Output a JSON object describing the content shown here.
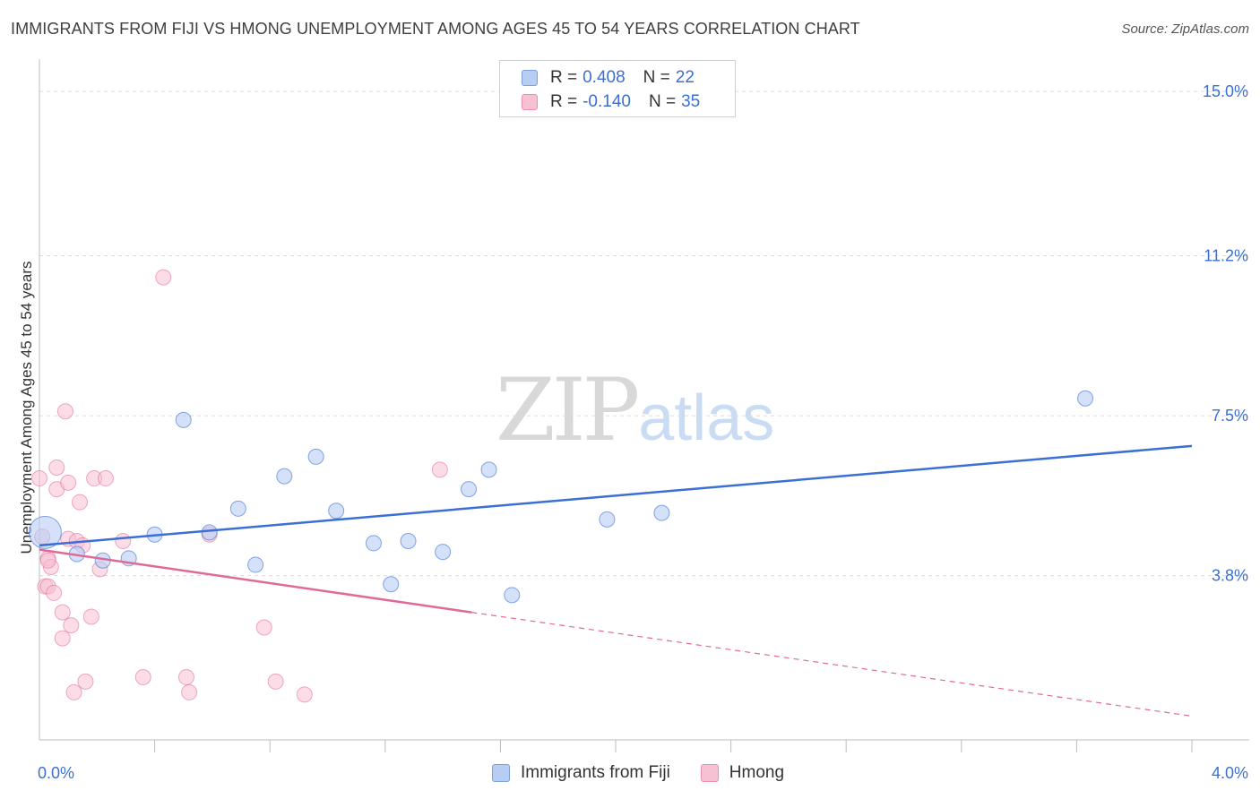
{
  "title": "IMMIGRANTS FROM FIJI VS HMONG UNEMPLOYMENT AMONG AGES 45 TO 54 YEARS CORRELATION CHART",
  "source": "Source: ZipAtlas.com",
  "watermark": {
    "zip": "ZIP",
    "atlas": "atlas"
  },
  "legend_top": [
    {
      "r_label": "R =",
      "r_value": "0.408",
      "n_label": "N =",
      "n_value": "22"
    },
    {
      "r_label": "R =",
      "r_value": "-0.140",
      "n_label": "N =",
      "n_value": "35"
    }
  ],
  "legend_bottom": [
    {
      "label": "Immigrants from Fiji"
    },
    {
      "label": "Hmong"
    }
  ],
  "chart_data": {
    "type": "scatter",
    "xlabel": "",
    "ylabel": "Unemployment Among Ages 45 to 54 years",
    "xlim": [
      0,
      4.0
    ],
    "ylim": [
      0,
      15.5
    ],
    "x_tick_labels": [
      "0.0%",
      "4.0%"
    ],
    "y_ticks": [
      3.8,
      7.5,
      11.2,
      15.0
    ],
    "y_tick_labels": [
      "3.8%",
      "7.5%",
      "11.2%",
      "15.0%"
    ],
    "grid": "horizontal dashed",
    "colors": {
      "fiji": "#3b6fd4",
      "fiji_fill": "#b7cdf4",
      "hmong": "#e06a97",
      "hmong_fill": "#f7c0d3",
      "tick_label": "#3b6fd4"
    },
    "series": [
      {
        "name": "Immigrants from Fiji",
        "points": [
          {
            "x": 0.02,
            "y": 4.8,
            "big": true
          },
          {
            "x": 0.13,
            "y": 4.3
          },
          {
            "x": 0.22,
            "y": 4.15
          },
          {
            "x": 0.31,
            "y": 4.2
          },
          {
            "x": 0.4,
            "y": 4.75
          },
          {
            "x": 0.5,
            "y": 7.4
          },
          {
            "x": 0.59,
            "y": 4.8
          },
          {
            "x": 0.69,
            "y": 5.35
          },
          {
            "x": 0.75,
            "y": 4.05
          },
          {
            "x": 0.85,
            "y": 6.1
          },
          {
            "x": 0.96,
            "y": 6.55
          },
          {
            "x": 1.03,
            "y": 5.3
          },
          {
            "x": 1.16,
            "y": 4.55
          },
          {
            "x": 1.22,
            "y": 3.6
          },
          {
            "x": 1.28,
            "y": 4.6
          },
          {
            "x": 1.4,
            "y": 4.35
          },
          {
            "x": 1.49,
            "y": 5.8
          },
          {
            "x": 1.56,
            "y": 6.25
          },
          {
            "x": 1.64,
            "y": 3.35
          },
          {
            "x": 1.97,
            "y": 5.1
          },
          {
            "x": 2.16,
            "y": 5.25
          },
          {
            "x": 3.63,
            "y": 7.9
          }
        ],
        "trend": {
          "x": [
            0.0,
            4.0
          ],
          "y": [
            4.5,
            6.8
          ]
        }
      },
      {
        "name": "Hmong",
        "points": [
          {
            "x": 0.0,
            "y": 6.05
          },
          {
            "x": 0.01,
            "y": 4.7
          },
          {
            "x": 0.02,
            "y": 3.55
          },
          {
            "x": 0.03,
            "y": 4.2
          },
          {
            "x": 0.03,
            "y": 3.55
          },
          {
            "x": 0.04,
            "y": 4.0
          },
          {
            "x": 0.05,
            "y": 3.4
          },
          {
            "x": 0.06,
            "y": 6.3
          },
          {
            "x": 0.06,
            "y": 5.8
          },
          {
            "x": 0.08,
            "y": 2.95
          },
          {
            "x": 0.08,
            "y": 2.35
          },
          {
            "x": 0.09,
            "y": 7.6
          },
          {
            "x": 0.1,
            "y": 5.95
          },
          {
            "x": 0.1,
            "y": 4.65
          },
          {
            "x": 0.11,
            "y": 2.65
          },
          {
            "x": 0.12,
            "y": 1.1
          },
          {
            "x": 0.13,
            "y": 4.6
          },
          {
            "x": 0.14,
            "y": 5.5
          },
          {
            "x": 0.15,
            "y": 4.5
          },
          {
            "x": 0.16,
            "y": 1.35
          },
          {
            "x": 0.18,
            "y": 2.85
          },
          {
            "x": 0.19,
            "y": 6.05
          },
          {
            "x": 0.21,
            "y": 3.95
          },
          {
            "x": 0.23,
            "y": 6.05
          },
          {
            "x": 0.29,
            "y": 4.6
          },
          {
            "x": 0.36,
            "y": 1.45
          },
          {
            "x": 0.43,
            "y": 10.7
          },
          {
            "x": 0.51,
            "y": 1.45
          },
          {
            "x": 0.52,
            "y": 1.1
          },
          {
            "x": 0.59,
            "y": 4.75
          },
          {
            "x": 0.78,
            "y": 2.6
          },
          {
            "x": 0.82,
            "y": 1.35
          },
          {
            "x": 0.92,
            "y": 1.05
          },
          {
            "x": 1.39,
            "y": 6.25
          },
          {
            "x": 0.03,
            "y": 4.15
          }
        ],
        "trend": {
          "x": [
            0.0,
            1.5
          ],
          "y": [
            4.4,
            2.95
          ]
        },
        "trend_dashed": {
          "x": [
            1.5,
            4.0
          ],
          "y": [
            2.95,
            0.55
          ]
        }
      }
    ]
  }
}
